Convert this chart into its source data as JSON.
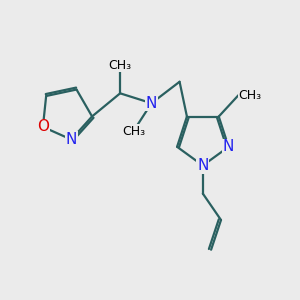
{
  "bg_color": "#ebebeb",
  "bond_color": "#2a6060",
  "N_color": "#2222ee",
  "O_color": "#dd0000",
  "lw": 1.6,
  "dbo": 0.06,
  "fs": 11,
  "fs2": 9,
  "figsize": [
    3.0,
    3.0
  ],
  "dpi": 100,
  "xlim": [
    0.5,
    9.5
  ],
  "ylim": [
    0.8,
    8.5
  ]
}
